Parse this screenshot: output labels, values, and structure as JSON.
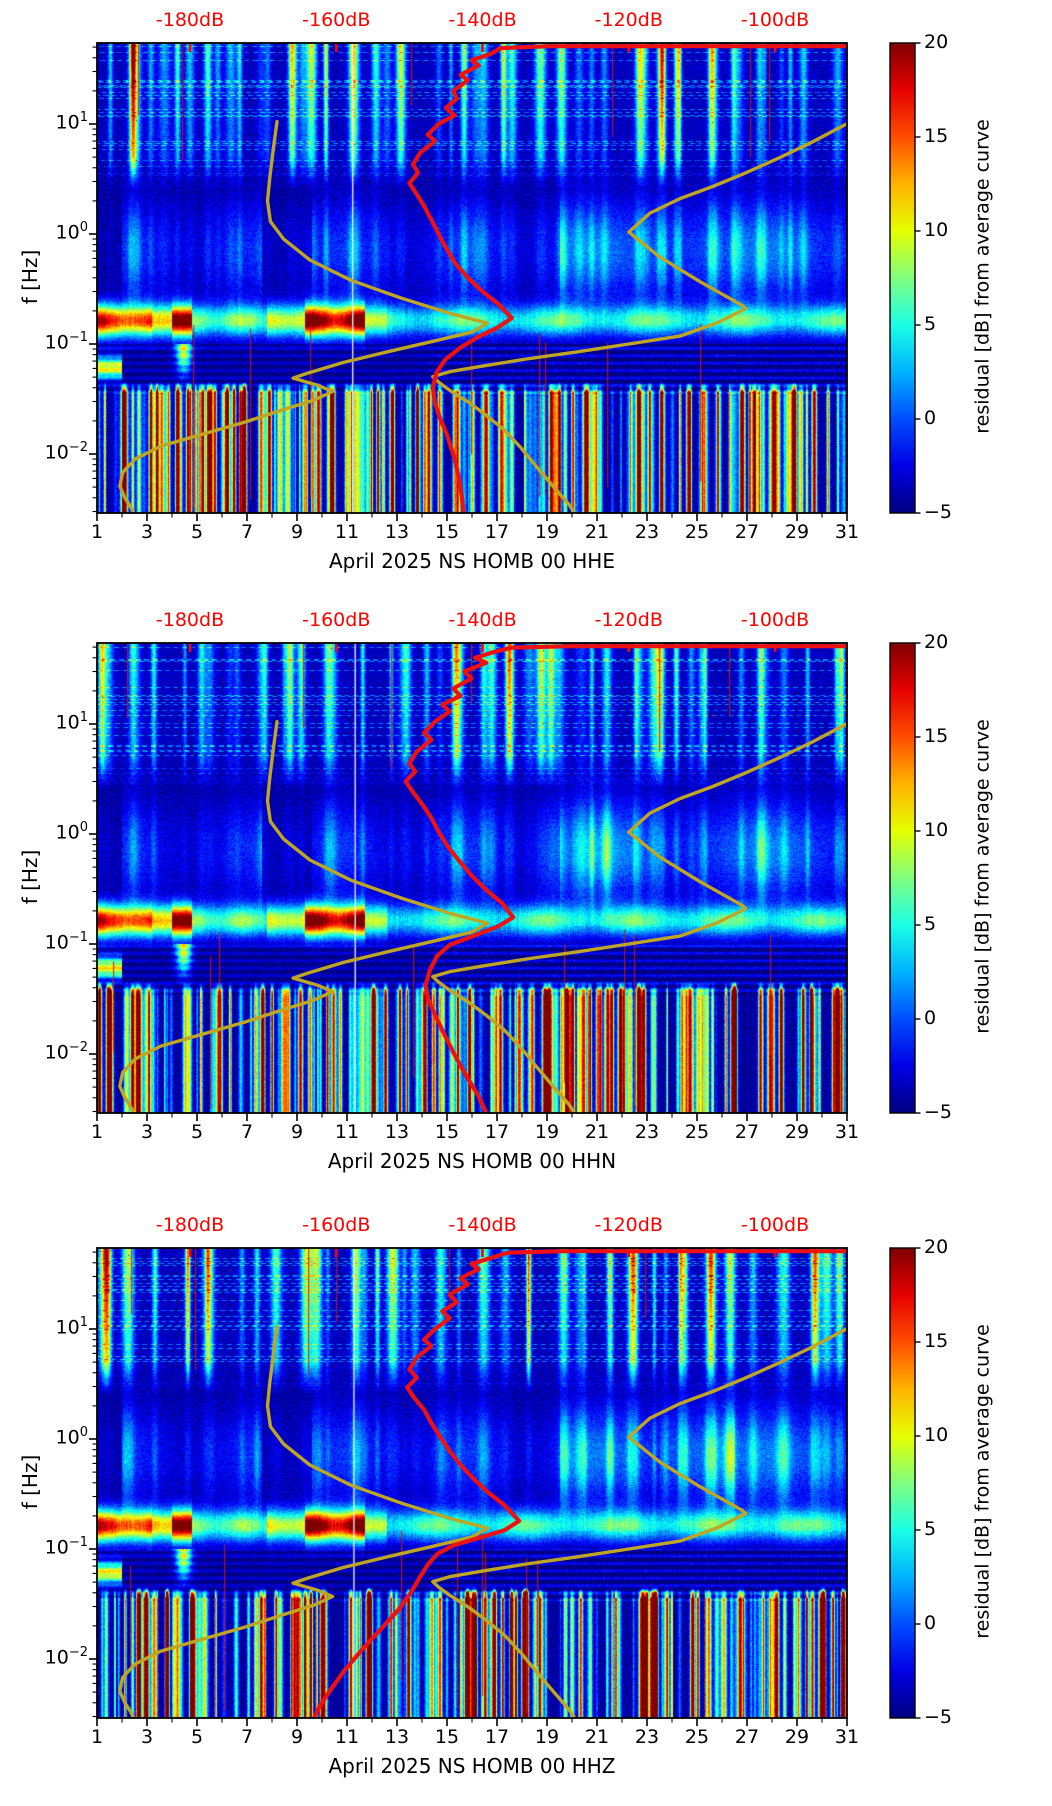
{
  "chart_data": {
    "type": "heatmap",
    "colormap": "jet",
    "value_range": [
      -5,
      20
    ],
    "n_panels": 3,
    "month": "April 2025",
    "network_station": "NS HOMB 00",
    "top_axis": {
      "color": "#ff0000",
      "labels": [
        "-180dB",
        "-160dB",
        "-140dB",
        "-120dB",
        "-100dB"
      ],
      "dB_values": [
        -180,
        -160,
        -140,
        -120,
        -100
      ]
    },
    "x_axis": {
      "tick_labels": [
        "1",
        "3",
        "5",
        "7",
        "9",
        "11",
        "13",
        "15",
        "17",
        "19",
        "21",
        "23",
        "25",
        "27",
        "29",
        "31"
      ],
      "tick_days": [
        1,
        3,
        5,
        7,
        9,
        11,
        13,
        15,
        17,
        19,
        21,
        23,
        25,
        27,
        29,
        31
      ],
      "minor_tick_days": [
        2,
        4,
        6,
        8,
        10,
        12,
        14,
        16,
        18,
        20,
        22,
        24,
        26,
        28,
        30
      ],
      "range_days": [
        1,
        31
      ]
    },
    "y_axis": {
      "label": "f [Hz]",
      "ticks": [
        {
          "base": "10",
          "exp": "1",
          "logf": 1
        },
        {
          "base": "10",
          "exp": "0",
          "logf": 0
        },
        {
          "base": "10",
          "exp": "−1",
          "logf": -1
        },
        {
          "base": "10",
          "exp": "−2",
          "logf": -2
        }
      ],
      "f_top_Hz": 54.5,
      "f_bottom_Hz": 0.0029
    },
    "colorbar": {
      "label": "residual [dB] from average curve",
      "tick_labels": [
        "20",
        "15",
        "10",
        "5",
        "0",
        "−5"
      ],
      "tick_values": [
        20,
        15,
        10,
        5,
        0,
        -5
      ],
      "vmin": -5,
      "vmax": 20
    },
    "noise_model_curves": {
      "color": "#bfa524",
      "low_model_dB_Hz": [
        [
          -168.1,
          10.5
        ],
        [
          -168.6,
          6
        ],
        [
          -169.1,
          3.2
        ],
        [
          -169.4,
          2.0
        ],
        [
          -169.0,
          1.3
        ],
        [
          -167.2,
          0.9
        ],
        [
          -163.6,
          0.58
        ],
        [
          -158,
          0.38
        ],
        [
          -151,
          0.26
        ],
        [
          -144.5,
          0.19
        ],
        [
          -139.3,
          0.155
        ],
        [
          -141.5,
          0.128
        ],
        [
          -147,
          0.105
        ],
        [
          -153,
          0.085
        ],
        [
          -159,
          0.068
        ],
        [
          -164,
          0.054
        ],
        [
          -165.9,
          0.049
        ],
        [
          -162.5,
          0.042
        ],
        [
          -160.5,
          0.037
        ],
        [
          -163,
          0.031
        ],
        [
          -167.5,
          0.025
        ],
        [
          -172.5,
          0.0195
        ],
        [
          -178.5,
          0.015
        ],
        [
          -184,
          0.0118
        ],
        [
          -187.5,
          0.009
        ],
        [
          -189.2,
          0.0068
        ],
        [
          -189.6,
          0.0051
        ],
        [
          -188.9,
          0.004
        ],
        [
          -188.1,
          0.0033
        ],
        [
          -187.7,
          0.0029
        ]
      ],
      "high_model_dB_Hz": [
        [
          -90,
          10.2
        ],
        [
          -95,
          6.8
        ],
        [
          -99.5,
          4.9
        ],
        [
          -104,
          3.6
        ],
        [
          -108.5,
          2.7
        ],
        [
          -113,
          2.1
        ],
        [
          -117.1,
          1.55
        ],
        [
          -120,
          1.04
        ],
        [
          -115.8,
          0.62
        ],
        [
          -110.3,
          0.37
        ],
        [
          -104.5,
          0.225
        ],
        [
          -104,
          0.21
        ],
        [
          -108,
          0.155
        ],
        [
          -113,
          0.118
        ],
        [
          -120,
          0.1
        ],
        [
          -127,
          0.085
        ],
        [
          -134,
          0.073
        ],
        [
          -140,
          0.063
        ],
        [
          -144.5,
          0.056
        ],
        [
          -146.8,
          0.0505
        ],
        [
          -146,
          0.045
        ],
        [
          -144.5,
          0.038
        ],
        [
          -141.9,
          0.0295
        ],
        [
          -139.5,
          0.0225
        ],
        [
          -137,
          0.0165
        ],
        [
          -134.8,
          0.0115
        ],
        [
          -132.5,
          0.0075
        ],
        [
          -130,
          0.0048
        ],
        [
          -128.2,
          0.0035
        ],
        [
          -127.4,
          0.0029
        ]
      ]
    },
    "plots": [
      {
        "channel": "HHE",
        "title": "April 2025 NS HOMB 00 HHE",
        "psd_curve_color": "#ee1111",
        "psd_curve_dB_Hz": [
          [
            -90,
            51
          ],
          [
            -112,
            51
          ],
          [
            -131,
            51
          ],
          [
            -137.5,
            49
          ],
          [
            -139,
            43
          ],
          [
            -141.5,
            38
          ],
          [
            -140.5,
            34
          ],
          [
            -143,
            28
          ],
          [
            -142,
            25
          ],
          [
            -144,
            20
          ],
          [
            -143.5,
            17
          ],
          [
            -145,
            14
          ],
          [
            -143.8,
            12
          ],
          [
            -146,
            10
          ],
          [
            -147.5,
            8
          ],
          [
            -146.5,
            7
          ],
          [
            -148.5,
            5.5
          ],
          [
            -149.5,
            4.3
          ],
          [
            -148.8,
            3.6
          ],
          [
            -150,
            2.9
          ],
          [
            -149,
            2.3
          ],
          [
            -148,
            1.8
          ],
          [
            -147,
            1.35
          ],
          [
            -146,
            1.0
          ],
          [
            -145,
            0.75
          ],
          [
            -143.8,
            0.55
          ],
          [
            -142,
            0.4
          ],
          [
            -140,
            0.3
          ],
          [
            -137.8,
            0.23
          ],
          [
            -136,
            0.172
          ],
          [
            -138,
            0.14
          ],
          [
            -140.7,
            0.115
          ],
          [
            -143,
            0.093
          ],
          [
            -145.1,
            0.072
          ],
          [
            -146.3,
            0.055
          ],
          [
            -146.8,
            0.04
          ],
          [
            -146.5,
            0.029
          ],
          [
            -145.8,
            0.021
          ],
          [
            -144.8,
            0.0145
          ],
          [
            -143.9,
            0.0095
          ],
          [
            -143.2,
            0.006
          ],
          [
            -142.8,
            0.004
          ],
          [
            -142.6,
            0.0029
          ]
        ],
        "gap_day": 11.2
      },
      {
        "channel": "HHN",
        "title": "April 2025 NS HOMB 00 HHN",
        "psd_curve_color": "#ee1111",
        "psd_curve_dB_Hz": [
          [
            -90,
            51
          ],
          [
            -110,
            51
          ],
          [
            -128,
            51
          ],
          [
            -136,
            49.5
          ],
          [
            -138.5,
            45
          ],
          [
            -141,
            40
          ],
          [
            -139.5,
            36
          ],
          [
            -142.5,
            30
          ],
          [
            -141.5,
            26
          ],
          [
            -144,
            21
          ],
          [
            -143,
            18
          ],
          [
            -145.5,
            15
          ],
          [
            -144.5,
            13
          ],
          [
            -146.5,
            10.5
          ],
          [
            -148,
            8.3
          ],
          [
            -147,
            7.2
          ],
          [
            -149,
            5.6
          ],
          [
            -150,
            4.4
          ],
          [
            -149.2,
            3.7
          ],
          [
            -150.5,
            3.0
          ],
          [
            -149.5,
            2.4
          ],
          [
            -148.2,
            1.85
          ],
          [
            -147,
            1.4
          ],
          [
            -146,
            1.05
          ],
          [
            -144.8,
            0.78
          ],
          [
            -143.2,
            0.57
          ],
          [
            -141.5,
            0.42
          ],
          [
            -139.5,
            0.31
          ],
          [
            -137.3,
            0.235
          ],
          [
            -135.8,
            0.175
          ],
          [
            -137.8,
            0.145
          ],
          [
            -141,
            0.12
          ],
          [
            -144.5,
            0.098
          ],
          [
            -146.2,
            0.078
          ],
          [
            -147.2,
            0.058
          ],
          [
            -147.8,
            0.042
          ],
          [
            -147.4,
            0.031
          ],
          [
            -146.4,
            0.022
          ],
          [
            -145.2,
            0.015
          ],
          [
            -143.8,
            0.0098
          ],
          [
            -142.2,
            0.0063
          ],
          [
            -140.6,
            0.0042
          ],
          [
            -139.8,
            0.0032
          ],
          [
            -139.5,
            0.0029
          ]
        ],
        "gap_day": 11.3
      },
      {
        "channel": "HHZ",
        "title": "April 2025 NS HOMB 00 HHZ",
        "psd_curve_color": "#ee1111",
        "psd_curve_dB_Hz": [
          [
            -90,
            51
          ],
          [
            -111,
            51
          ],
          [
            -129,
            51
          ],
          [
            -136.5,
            49.5
          ],
          [
            -139,
            44
          ],
          [
            -141.5,
            39
          ],
          [
            -140.5,
            35
          ],
          [
            -143,
            29
          ],
          [
            -142,
            25.5
          ],
          [
            -144.5,
            20.5
          ],
          [
            -143.5,
            17.5
          ],
          [
            -145.5,
            14.5
          ],
          [
            -144.5,
            12.5
          ],
          [
            -146.5,
            10
          ],
          [
            -148,
            8
          ],
          [
            -147,
            7
          ],
          [
            -149,
            5.5
          ],
          [
            -150,
            4.3
          ],
          [
            -149,
            3.6
          ],
          [
            -150.3,
            2.95
          ],
          [
            -149.3,
            2.35
          ],
          [
            -148,
            1.85
          ],
          [
            -147,
            1.4
          ],
          [
            -145.8,
            1.05
          ],
          [
            -144.5,
            0.78
          ],
          [
            -143,
            0.58
          ],
          [
            -141.3,
            0.44
          ],
          [
            -139.3,
            0.33
          ],
          [
            -137,
            0.25
          ],
          [
            -135,
            0.18
          ],
          [
            -137,
            0.148
          ],
          [
            -140.5,
            0.126
          ],
          [
            -144,
            0.108
          ],
          [
            -146.2,
            0.09
          ],
          [
            -147.5,
            0.072
          ],
          [
            -148.6,
            0.055
          ],
          [
            -149.8,
            0.04
          ],
          [
            -151.5,
            0.028
          ],
          [
            -153.8,
            0.019
          ],
          [
            -156.3,
            0.0125
          ],
          [
            -158.8,
            0.008
          ],
          [
            -161,
            0.005
          ],
          [
            -162.5,
            0.0035
          ],
          [
            -163,
            0.0029
          ]
        ],
        "gap_day": 11.25
      }
    ],
    "spectrogram_features": {
      "microseism_strong_red_day_ranges": [
        [
          1,
          3.2
        ],
        [
          9.3,
          11.7
        ]
      ],
      "microseism_wedge_day": 4.45,
      "dark_plume_day_range": [
        7.8,
        9.5
      ],
      "bright_mid_band_day_range": [
        19,
        31
      ],
      "daily_vertical_stripes": "anthropogenic noise columns, one or two per day",
      "bottom_band": "dense narrow vertical stripes below 0.03 Hz"
    }
  }
}
